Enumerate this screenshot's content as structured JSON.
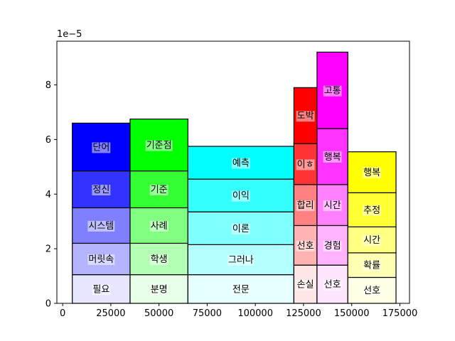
{
  "chart_data": {
    "type": "bar",
    "subtype": "marimekko-stacked",
    "title": "",
    "xlabel": "",
    "ylabel": "",
    "y_scale_label": "1e−5",
    "xlim": [
      -3000,
      180000
    ],
    "ylim": [
      0,
      9.6
    ],
    "x_ticks": [
      0,
      25000,
      50000,
      75000,
      100000,
      125000,
      150000,
      175000
    ],
    "y_ticks": [
      0,
      2,
      4,
      6,
      8
    ],
    "grid": false,
    "legend": "none",
    "columns": [
      {
        "x_start": 5000,
        "x_end": 35000,
        "color": "#0000ff",
        "segments": [
          {
            "label": "필요",
            "value": 1.05
          },
          {
            "label": "머릿속",
            "value": 1.15
          },
          {
            "label": "시스템",
            "value": 1.3
          },
          {
            "label": "정신",
            "value": 1.35
          },
          {
            "label": "단어",
            "value": 1.75
          }
        ]
      },
      {
        "x_start": 35000,
        "x_end": 65000,
        "color": "#00ff00",
        "segments": [
          {
            "label": "분명",
            "value": 1.05
          },
          {
            "label": "학생",
            "value": 1.15
          },
          {
            "label": "사례",
            "value": 1.3
          },
          {
            "label": "기준",
            "value": 1.35
          },
          {
            "label": "기준점",
            "value": 1.9
          }
        ]
      },
      {
        "x_start": 65000,
        "x_end": 120000,
        "color": "#00ffff",
        "segments": [
          {
            "label": "전문",
            "value": 1.05
          },
          {
            "label": "그러나",
            "value": 1.1
          },
          {
            "label": "이론",
            "value": 1.2
          },
          {
            "label": "이익",
            "value": 1.2
          },
          {
            "label": "예측",
            "value": 1.2
          }
        ]
      },
      {
        "x_start": 120000,
        "x_end": 132000,
        "color": "#ff0000",
        "segments": [
          {
            "label": "손실",
            "value": 1.4
          },
          {
            "label": "선호",
            "value": 1.45
          },
          {
            "label": "합리",
            "value": 1.5
          },
          {
            "label": "이ㅎ",
            "value": 1.5
          },
          {
            "label": "도박",
            "value": 2.05
          }
        ]
      },
      {
        "x_start": 132000,
        "x_end": 148000,
        "color": "#ff00ff",
        "segments": [
          {
            "label": "선호",
            "value": 1.4
          },
          {
            "label": "경험",
            "value": 1.45
          },
          {
            "label": "시간",
            "value": 1.5
          },
          {
            "label": "행복",
            "value": 2.05
          },
          {
            "label": "고통",
            "value": 2.8
          }
        ]
      },
      {
        "x_start": 148000,
        "x_end": 173000,
        "color": "#ffff00",
        "segments": [
          {
            "label": "선호",
            "value": 0.95
          },
          {
            "label": "확률",
            "value": 0.9
          },
          {
            "label": "시간",
            "value": 0.95
          },
          {
            "label": "추정",
            "value": 1.25
          },
          {
            "label": "행복",
            "value": 1.5
          }
        ]
      }
    ]
  }
}
